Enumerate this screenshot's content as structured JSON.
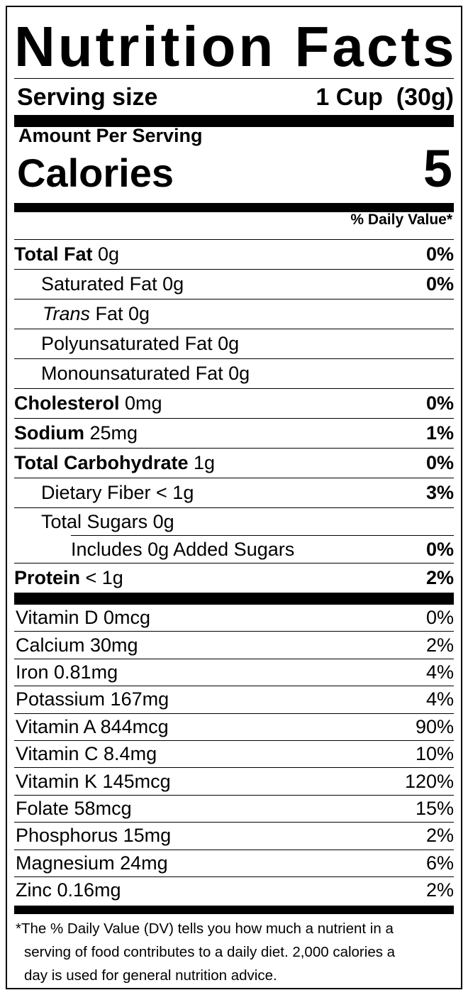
{
  "title": "Nutrition Facts",
  "serving": {
    "label": "Serving size",
    "value": "1 Cup  (30g)"
  },
  "amount_per_serving": "Amount Per Serving",
  "calories": {
    "label": "Calories",
    "value": "5"
  },
  "daily_value_header": "% Daily Value*",
  "nutrients": {
    "total_fat": {
      "name": "Total Fat",
      "amount": " 0g",
      "dv": "0%"
    },
    "saturated_fat": {
      "name": "Saturated Fat 0g",
      "dv": "0%"
    },
    "trans_fat": {
      "name_italic": "Trans",
      "name_rest": " Fat 0g"
    },
    "polyunsaturated_fat": {
      "name": "Polyunsaturated Fat 0g"
    },
    "monounsaturated_fat": {
      "name": "Monounsaturated Fat 0g"
    },
    "cholesterol": {
      "name": "Cholesterol",
      "amount": " 0mg",
      "dv": "0%"
    },
    "sodium": {
      "name": "Sodium",
      "amount": " 25mg",
      "dv": "1%"
    },
    "total_carbohydrate": {
      "name": "Total Carbohydrate",
      "amount": " 1g",
      "dv": "0%"
    },
    "dietary_fiber": {
      "name": "Dietary Fiber < 1g",
      "dv": "3%"
    },
    "total_sugars": {
      "name": "Total Sugars 0g"
    },
    "added_sugars": {
      "name": "Includes 0g Added Sugars",
      "dv": "0%"
    },
    "protein": {
      "name": "Protein",
      "amount": " < 1g",
      "dv": "2%"
    }
  },
  "vitamins": [
    {
      "name": "Vitamin D 0mcg",
      "dv": "0%"
    },
    {
      "name": "Calcium 30mg",
      "dv": "2%"
    },
    {
      "name": "Iron 0.81mg",
      "dv": "4%"
    },
    {
      "name": "Potassium 167mg",
      "dv": "4%"
    },
    {
      "name": "Vitamin A 844mcg",
      "dv": "90%"
    },
    {
      "name": "Vitamin C 8.4mg",
      "dv": "10%"
    },
    {
      "name": "Vitamin K 145mcg",
      "dv": "120%"
    },
    {
      "name": "Folate 58mcg",
      "dv": "15%"
    },
    {
      "name": "Phosphorus 15mg",
      "dv": "2%"
    },
    {
      "name": "Magnesium 24mg",
      "dv": "6%"
    },
    {
      "name": "Zinc 0.16mg",
      "dv": "2%"
    }
  ],
  "footnote": {
    "line1": "*The % Daily Value (DV) tells you how much a nutrient in a",
    "line2": "serving of food contributes to a daily diet. 2,000 calories a",
    "line3": "day is used for general nutrition advice."
  }
}
